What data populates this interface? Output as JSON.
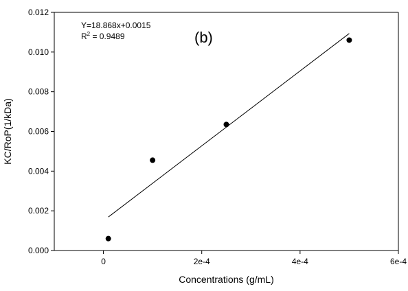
{
  "chart_data": {
    "type": "scatter",
    "xlabel": "Concentrations (g/mL)",
    "ylabel": "KC/RoP(1/kDa)",
    "xlim": [
      -0.0001,
      0.0006
    ],
    "ylim": [
      0,
      0.012
    ],
    "x_ticks": [
      0,
      0.0002,
      0.0004,
      0.0006
    ],
    "x_tick_labels": [
      "0",
      "2e-4",
      "4e-4",
      "6e-4"
    ],
    "y_ticks": [
      0,
      0.002,
      0.004,
      0.006,
      0.008,
      0.01,
      0.012
    ],
    "y_tick_labels": [
      "0.000",
      "0.002",
      "0.004",
      "0.006",
      "0.008",
      "0.010",
      "0.012"
    ],
    "series": [
      {
        "points": [
          {
            "x": 1e-05,
            "y": 0.0006
          },
          {
            "x": 0.0001,
            "y": 0.00455
          },
          {
            "x": 0.00025,
            "y": 0.00635
          },
          {
            "x": 0.0005,
            "y": 0.0106
          }
        ],
        "color": "#000000"
      }
    ],
    "fit_line": {
      "slope": 18.868,
      "intercept": 0.0015,
      "x_range": [
        1e-05,
        0.0005
      ],
      "color": "#000000"
    },
    "annotations": {
      "equation": "Y=18.868x+0.0015",
      "r2_prefix": "R",
      "r2_superscript": "2",
      "r2_value": " = 0.9489",
      "panel_label": "(b)"
    },
    "grid": false,
    "legend": "none"
  }
}
